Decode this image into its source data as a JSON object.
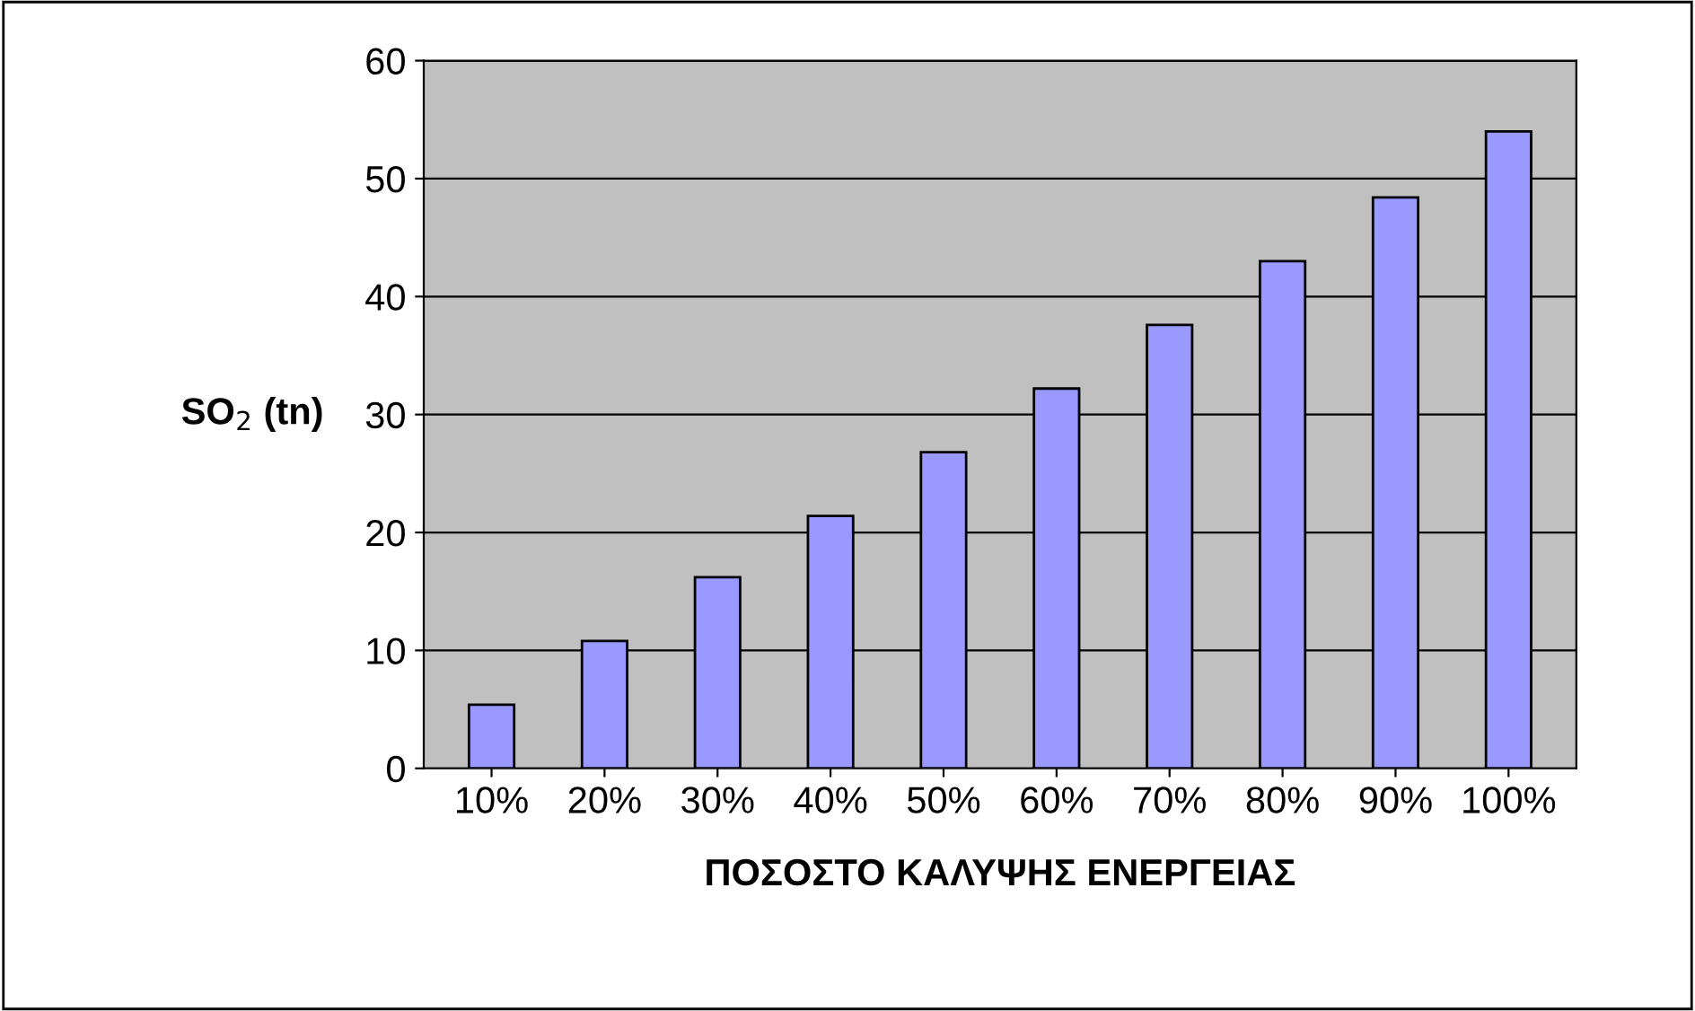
{
  "chart_data": {
    "type": "bar",
    "categories": [
      "10%",
      "20%",
      "30%",
      "40%",
      "50%",
      "60%",
      "70%",
      "80%",
      "90%",
      "100%"
    ],
    "values": [
      5.4,
      10.8,
      16.2,
      21.4,
      26.8,
      32.2,
      37.6,
      43,
      48.4,
      54
    ],
    "color": "#9999ff",
    "xlabel": "ΠΟΣΟΣΤΟ ΚΑΛΥΨΗΣ ΕΝΕΡΓΕΙΑΣ",
    "ylabel": "SO$_{2}$ (tn)",
    "ylim": [
      0,
      60
    ],
    "yticks": [
      0,
      10,
      20,
      30,
      40,
      50,
      60
    ],
    "grid": "y"
  }
}
